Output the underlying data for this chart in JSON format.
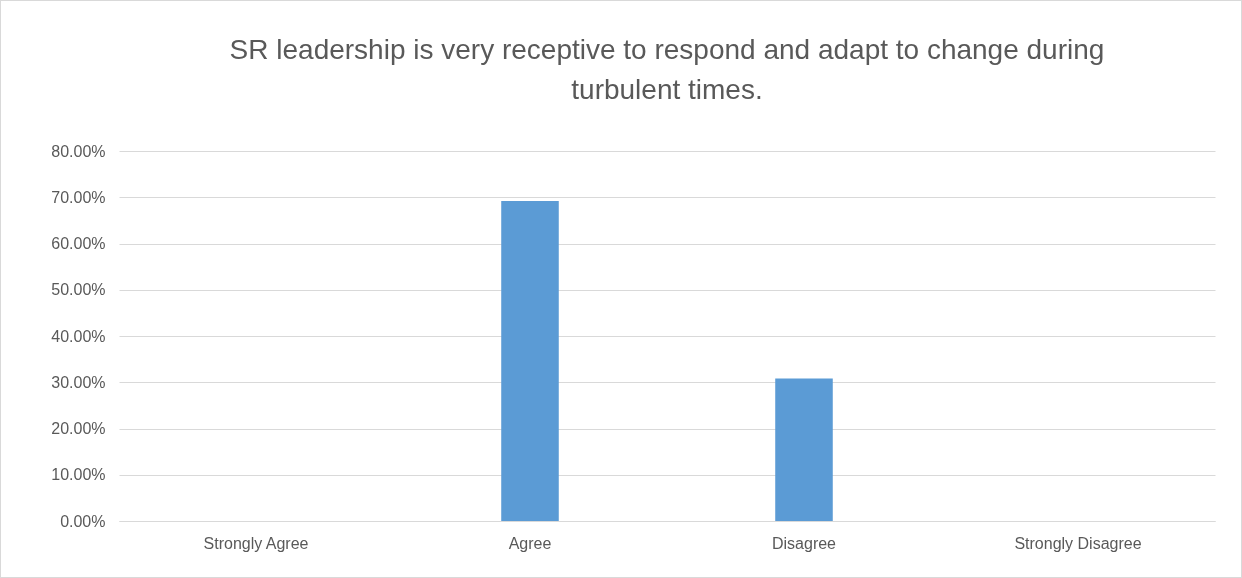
{
  "chart_data": {
    "type": "bar",
    "title": "SR leadership is very receptive to respond and adapt to change during turbulent times.",
    "categories": [
      "Strongly Agree",
      "Agree",
      "Disagree",
      "Strongly Disagree"
    ],
    "values": [
      0,
      69.2,
      30.8,
      0
    ],
    "color": "#5b9bd5",
    "ylim": [
      0,
      80
    ],
    "yticks": [
      {
        "value": 0,
        "label": "0.00%"
      },
      {
        "value": 10,
        "label": "10.00%"
      },
      {
        "value": 20,
        "label": "20.00%"
      },
      {
        "value": 30,
        "label": "30.00%"
      },
      {
        "value": 40,
        "label": "40.00%"
      },
      {
        "value": 50,
        "label": "50.00%"
      },
      {
        "value": 60,
        "label": "60.00%"
      },
      {
        "value": 70,
        "label": "70.00%"
      },
      {
        "value": 80,
        "label": "80.00%"
      }
    ],
    "grid": "y"
  }
}
